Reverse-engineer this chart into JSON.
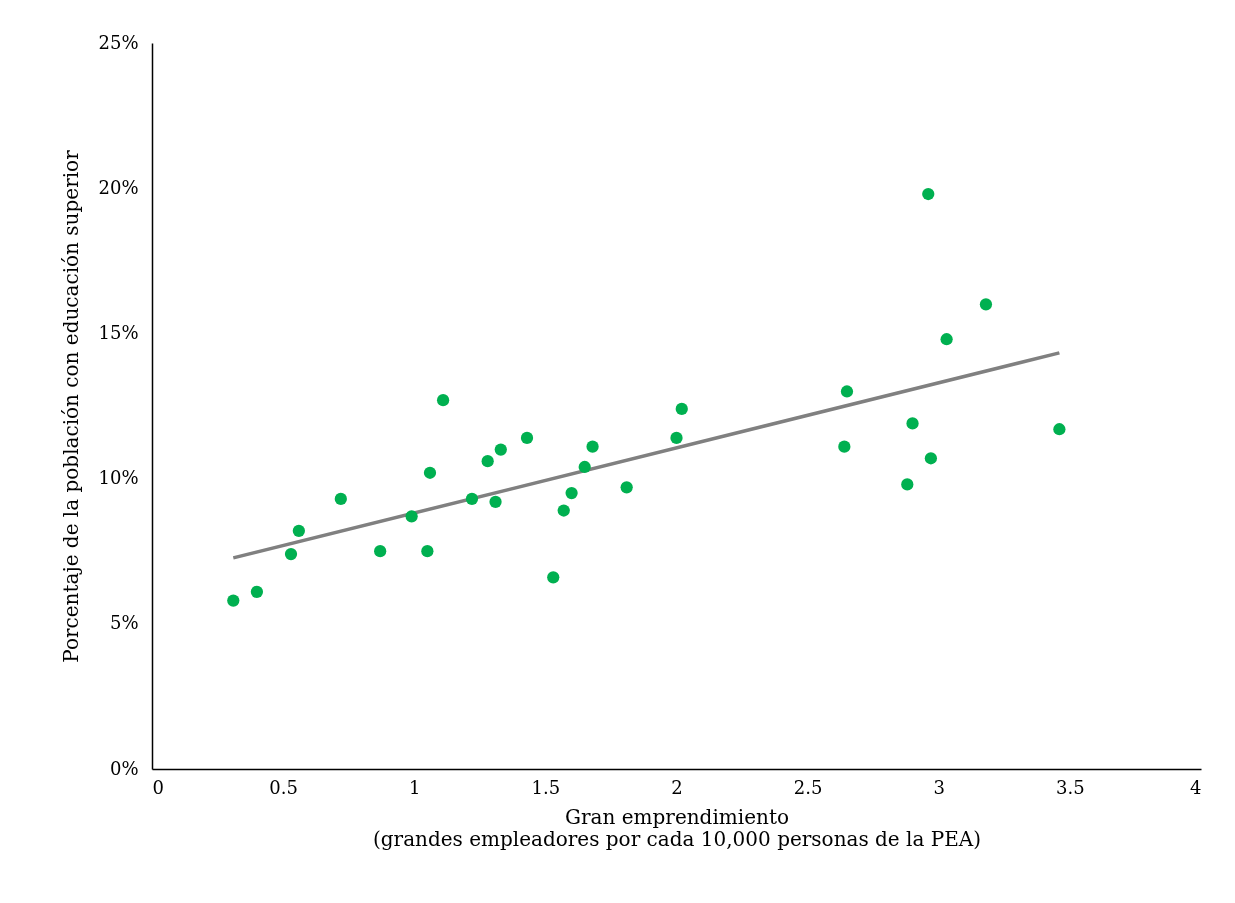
{
  "chart_data": {
    "type": "scatter",
    "xlabel": "Gran emprendimiento\n(grandes empleadores por cada 10,000 personas de la PEA)",
    "ylabel": "Porcentaje de la población con educación superior",
    "xlim": [
      0,
      4
    ],
    "xticks": [
      0,
      0.5,
      1,
      1.5,
      2,
      2.5,
      3,
      3.5,
      4
    ],
    "ylim": [
      0,
      25
    ],
    "yticks": [
      {
        "value": 0,
        "label": "0%"
      },
      {
        "value": 5,
        "label": "5%"
      },
      {
        "value": 10,
        "label": "10%"
      },
      {
        "value": 15,
        "label": "15%"
      },
      {
        "value": 20,
        "label": "20%"
      },
      {
        "value": 25,
        "label": "25%"
      }
    ],
    "grid": false,
    "series": [
      {
        "marker": "circle",
        "color": "#00b050",
        "x": [
          0.31,
          0.4,
          0.53,
          0.56,
          0.72,
          0.87,
          0.99,
          1.05,
          1.06,
          1.11,
          1.22,
          1.28,
          1.31,
          1.33,
          1.43,
          1.53,
          1.57,
          1.6,
          1.65,
          1.68,
          1.81,
          2.0,
          2.02,
          2.64,
          2.65,
          2.88,
          2.9,
          2.96,
          2.97,
          3.03,
          3.18,
          3.46
        ],
        "values": [
          5.8,
          6.1,
          7.4,
          8.2,
          9.3,
          7.5,
          8.7,
          7.5,
          10.2,
          12.7,
          9.3,
          10.6,
          9.2,
          11.0,
          11.4,
          6.6,
          8.9,
          9.5,
          10.4,
          11.1,
          9.7,
          11.4,
          12.4,
          11.1,
          13.0,
          9.8,
          11.9,
          19.8,
          10.7,
          14.8,
          16.0,
          11.7
        ]
      },
      {
        "type": "line",
        "color": "#808080",
        "x": [
          0.31,
          3.46
        ],
        "values": [
          7.27,
          14.33
        ]
      }
    ]
  }
}
